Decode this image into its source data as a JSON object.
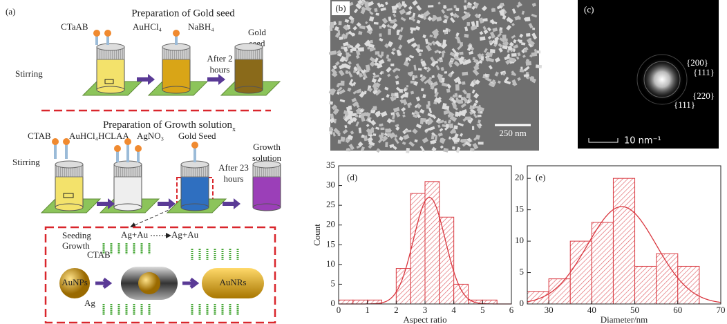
{
  "panel_a": {
    "label": "(a)",
    "title_seed": "Preparation of Gold seed",
    "title_growth": "Preparation of Growth solution",
    "title_growth_sub": "x",
    "seed_reagents": [
      "CTaAB",
      "AuHCl₄",
      "NaBH₄"
    ],
    "gold_seed": [
      "Gold",
      "seed"
    ],
    "stirring": [
      "Stirring",
      "Stirring"
    ],
    "after_2": [
      "After 2",
      "hours"
    ],
    "growth_reagents": [
      "CTAB",
      "AuHCl₄HCLAA",
      "AgNO₃",
      "Gold Seed"
    ],
    "growth_solution": [
      "Growth",
      "solution"
    ],
    "after_23": [
      "After 23",
      "hours"
    ],
    "seeding_growth": [
      "Seeding",
      "Growth"
    ],
    "ag_au_1": "Ag+Au",
    "ag_au_2": "Ag+Au",
    "ctab": "CTAB",
    "aunps": "AuNPs",
    "ag": "Ag",
    "aunrs": "AuNRs"
  },
  "panel_b": {
    "label": "(b)",
    "scale_bar": "250 nm"
  },
  "panel_c": {
    "label": "(c)",
    "scale_bar": "10 nm⁻¹",
    "rings": [
      "{200}",
      "{111}",
      "{220}",
      "{111}"
    ]
  },
  "chart_data": [
    {
      "type": "histogram",
      "panel": "(d)",
      "xlabel": "Aspect ratio",
      "ylabel": "Count",
      "color": "#d9363e",
      "bins": [
        0,
        0.5,
        1,
        1.5,
        2,
        2.5,
        3,
        3.5,
        4,
        4.5,
        5,
        5.5,
        6
      ],
      "values": [
        1,
        1,
        1,
        0,
        9,
        28,
        31,
        22,
        5,
        1,
        1,
        0
      ],
      "xlim": [
        0,
        6
      ],
      "xticks": [
        0,
        1,
        2,
        3,
        4,
        5,
        6
      ],
      "ylim": [
        0,
        35
      ],
      "yticks": [
        0,
        5,
        10,
        15,
        20,
        25,
        30,
        35
      ],
      "fit": {
        "center": 3.15,
        "width": 0.55,
        "peak": 27
      }
    },
    {
      "type": "histogram",
      "panel": "(e)",
      "xlabel": "Diameter/nm",
      "color": "#d9363e",
      "bins": [
        25,
        30,
        35,
        40,
        45,
        50,
        55,
        60,
        65,
        70
      ],
      "values": [
        2,
        4,
        10,
        13,
        20,
        6,
        8,
        6,
        0
      ],
      "xlim": [
        25,
        70
      ],
      "xticks": [
        30,
        40,
        50,
        60,
        70
      ],
      "ylim": [
        0,
        22
      ],
      "yticks": [
        0,
        5,
        10,
        15,
        20
      ],
      "fit": {
        "center": 47,
        "width": 8,
        "peak": 15.5
      }
    }
  ]
}
